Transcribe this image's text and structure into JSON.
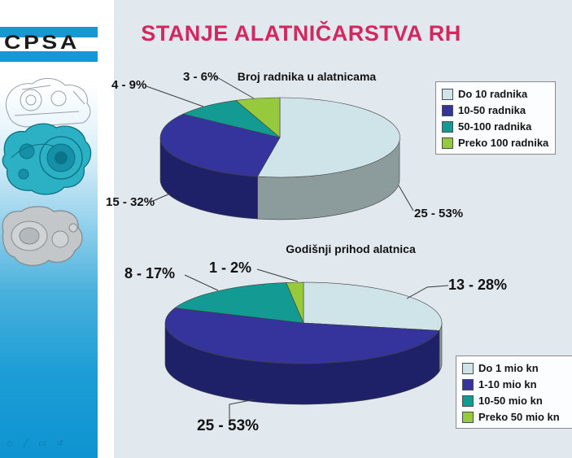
{
  "slide": {
    "title": "STANJE ALATNIČARSTVA RH",
    "title_color": "#d4275f",
    "background_color": "#e1e8ee"
  },
  "sidebar": {
    "logo_text": "CPSA",
    "logo_bar_color": "#1898d2",
    "ghost_icons": "◇ ╱ ▭ ↺"
  },
  "chart_data": [
    {
      "type": "pie",
      "style": "3d",
      "title": "Broj radnika u alatnicama",
      "labels": [
        "Do 10 radnika",
        "10-50 radnika",
        "50-100 radnika",
        "Preko 100 radnika"
      ],
      "counts": [
        25,
        15,
        4,
        3
      ],
      "values": [
        53,
        32,
        9,
        6
      ],
      "slice_labels": [
        "25 - 53%",
        "15 - 32%",
        "4 - 9%",
        "3 - 6%"
      ],
      "colors": [
        "#cfe4e9",
        "#34349c",
        "#129a93",
        "#97c93d"
      ],
      "side_colors": [
        "#8c9c9c",
        "#1f2168",
        "#0b6e69",
        "#6d9428"
      ],
      "legend_position": "right"
    },
    {
      "type": "pie",
      "style": "3d",
      "title": "Godišnji prihod alatnica",
      "labels": [
        "Do 1 mio kn",
        "1-10 mio kn",
        "10-50 mio kn",
        "Preko 50 mio kn"
      ],
      "counts": [
        13,
        25,
        8,
        1
      ],
      "values": [
        28,
        53,
        17,
        2
      ],
      "slice_labels": [
        "13 - 28%",
        "25 - 53%",
        "8 - 17%",
        "1 - 2%"
      ],
      "colors": [
        "#cfe4e9",
        "#34349c",
        "#129a93",
        "#97c93d"
      ],
      "side_colors": [
        "#8c9c9c",
        "#1f2168",
        "#0b6e69",
        "#6d9428"
      ],
      "legend_position": "bottom-right"
    }
  ]
}
